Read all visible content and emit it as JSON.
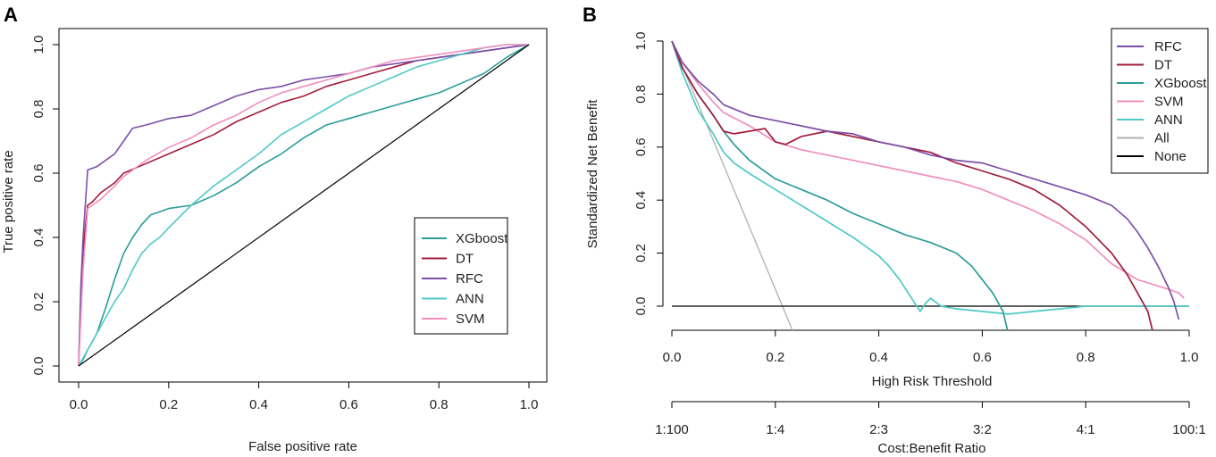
{
  "chart_data": [
    {
      "type": "line",
      "panel_label": "A",
      "title": "",
      "xlabel": "False positive rate",
      "ylabel": "True positive rate",
      "xlim": [
        0,
        1
      ],
      "ylim": [
        0,
        1
      ],
      "x_ticks": [
        "0.0",
        "0.2",
        "0.4",
        "0.6",
        "0.8",
        "1.0"
      ],
      "y_ticks": [
        "0.0",
        "0.2",
        "0.4",
        "0.6",
        "0.8",
        "1.0"
      ],
      "legend_position": "bottom-right",
      "legend": [
        "XGboost",
        "DT",
        "RFC",
        "ANN",
        "SVM"
      ],
      "series": [
        {
          "name": "XGboost",
          "color": "#2a9d98",
          "x": [
            0,
            0.01,
            0.02,
            0.04,
            0.06,
            0.08,
            0.1,
            0.12,
            0.14,
            0.16,
            0.18,
            0.2,
            0.25,
            0.3,
            0.35,
            0.4,
            0.45,
            0.5,
            0.55,
            0.6,
            0.65,
            0.7,
            0.75,
            0.8,
            0.85,
            0.9,
            0.95,
            1.0
          ],
          "y": [
            0,
            0.02,
            0.05,
            0.1,
            0.18,
            0.27,
            0.35,
            0.4,
            0.44,
            0.47,
            0.48,
            0.49,
            0.5,
            0.53,
            0.57,
            0.62,
            0.66,
            0.71,
            0.75,
            0.77,
            0.79,
            0.81,
            0.83,
            0.85,
            0.88,
            0.91,
            0.96,
            1.0
          ]
        },
        {
          "name": "DT",
          "color": "#a01c3a",
          "x": [
            0,
            0.005,
            0.01,
            0.02,
            0.03,
            0.05,
            0.08,
            0.1,
            0.15,
            0.2,
            0.25,
            0.3,
            0.35,
            0.4,
            0.45,
            0.5,
            0.55,
            0.6,
            0.65,
            0.7,
            0.75,
            0.8,
            0.85,
            0.9,
            0.95,
            1.0
          ],
          "y": [
            0,
            0.2,
            0.36,
            0.5,
            0.51,
            0.54,
            0.57,
            0.6,
            0.63,
            0.66,
            0.69,
            0.72,
            0.76,
            0.79,
            0.82,
            0.84,
            0.87,
            0.89,
            0.91,
            0.93,
            0.95,
            0.96,
            0.97,
            0.98,
            0.99,
            1.0
          ],
          "y_note": "step curve"
        },
        {
          "name": "RFC",
          "color": "#7b4fa8",
          "x": [
            0,
            0.005,
            0.01,
            0.02,
            0.04,
            0.06,
            0.08,
            0.1,
            0.12,
            0.15,
            0.2,
            0.25,
            0.3,
            0.35,
            0.4,
            0.45,
            0.5,
            0.55,
            0.6,
            0.65,
            0.7,
            0.75,
            0.8,
            0.85,
            0.9,
            0.95,
            1.0
          ],
          "y": [
            0,
            0.25,
            0.4,
            0.61,
            0.62,
            0.64,
            0.66,
            0.7,
            0.74,
            0.75,
            0.77,
            0.78,
            0.81,
            0.84,
            0.86,
            0.87,
            0.89,
            0.9,
            0.91,
            0.93,
            0.94,
            0.95,
            0.96,
            0.97,
            0.98,
            0.99,
            1.0
          ]
        },
        {
          "name": "ANN",
          "color": "#4fc9c6",
          "x": [
            0,
            0.02,
            0.04,
            0.06,
            0.08,
            0.1,
            0.12,
            0.14,
            0.16,
            0.18,
            0.2,
            0.25,
            0.3,
            0.35,
            0.4,
            0.45,
            0.5,
            0.55,
            0.6,
            0.65,
            0.7,
            0.75,
            0.8,
            0.85,
            0.9,
            0.95,
            1.0
          ],
          "y": [
            0,
            0.05,
            0.1,
            0.15,
            0.2,
            0.24,
            0.3,
            0.35,
            0.38,
            0.4,
            0.43,
            0.5,
            0.56,
            0.61,
            0.66,
            0.72,
            0.76,
            0.8,
            0.84,
            0.87,
            0.9,
            0.93,
            0.95,
            0.97,
            0.99,
            1.0,
            1.0
          ]
        },
        {
          "name": "SVM",
          "color": "#f08ebd",
          "x": [
            0,
            0.005,
            0.01,
            0.02,
            0.03,
            0.05,
            0.08,
            0.1,
            0.15,
            0.2,
            0.25,
            0.3,
            0.35,
            0.4,
            0.45,
            0.5,
            0.55,
            0.6,
            0.65,
            0.7,
            0.75,
            0.8,
            0.85,
            0.9,
            0.95,
            1.0
          ],
          "y": [
            0,
            0.15,
            0.3,
            0.49,
            0.5,
            0.52,
            0.56,
            0.59,
            0.64,
            0.68,
            0.71,
            0.75,
            0.78,
            0.82,
            0.85,
            0.87,
            0.89,
            0.91,
            0.93,
            0.95,
            0.96,
            0.97,
            0.98,
            0.99,
            1.0,
            1.0
          ]
        },
        {
          "name": "Reference",
          "color": "#000000",
          "x": [
            0,
            1
          ],
          "y": [
            0,
            1
          ]
        }
      ]
    },
    {
      "type": "line",
      "panel_label": "B",
      "title": "",
      "xlabel": "High Risk Threshold",
      "ylabel": "Standardized Net Benefit",
      "xlabel2": "Cost:Benefit Ratio",
      "xlim": [
        0,
        1
      ],
      "ylim": [
        -0.1,
        1.0
      ],
      "x_ticks": [
        "0.0",
        "0.2",
        "0.4",
        "0.6",
        "0.8",
        "1.0"
      ],
      "y_ticks": [
        "0.0",
        "0.2",
        "0.4",
        "0.6",
        "0.8",
        "1.0"
      ],
      "ratio_ticks": [
        "1:100",
        "1:4",
        "2:3",
        "3:2",
        "4:1",
        "100:1"
      ],
      "legend_position": "top-right",
      "legend": [
        "RFC",
        "DT",
        "XGboost",
        "SVM",
        "ANN",
        "All",
        "None"
      ],
      "series": [
        {
          "name": "RFC",
          "color": "#7b4fa8",
          "x": [
            0,
            0.02,
            0.05,
            0.08,
            0.1,
            0.15,
            0.2,
            0.25,
            0.3,
            0.35,
            0.4,
            0.45,
            0.5,
            0.55,
            0.6,
            0.65,
            0.7,
            0.75,
            0.8,
            0.85,
            0.88,
            0.9,
            0.92,
            0.94,
            0.96,
            0.97,
            0.98
          ],
          "y": [
            1.0,
            0.92,
            0.85,
            0.8,
            0.76,
            0.72,
            0.7,
            0.68,
            0.66,
            0.65,
            0.62,
            0.6,
            0.57,
            0.55,
            0.54,
            0.51,
            0.48,
            0.45,
            0.42,
            0.38,
            0.33,
            0.28,
            0.22,
            0.15,
            0.07,
            0.02,
            -0.05
          ]
        },
        {
          "name": "DT",
          "color": "#a01c3a",
          "x": [
            0,
            0.02,
            0.05,
            0.08,
            0.1,
            0.12,
            0.15,
            0.18,
            0.2,
            0.22,
            0.25,
            0.3,
            0.35,
            0.4,
            0.45,
            0.5,
            0.55,
            0.6,
            0.65,
            0.7,
            0.75,
            0.8,
            0.85,
            0.88,
            0.9,
            0.92,
            0.93
          ],
          "y": [
            1.0,
            0.9,
            0.8,
            0.72,
            0.66,
            0.65,
            0.66,
            0.67,
            0.62,
            0.61,
            0.64,
            0.66,
            0.64,
            0.62,
            0.6,
            0.58,
            0.54,
            0.51,
            0.48,
            0.44,
            0.38,
            0.3,
            0.2,
            0.12,
            0.05,
            -0.02,
            -0.1
          ]
        },
        {
          "name": "XGboost",
          "color": "#2a9d98",
          "x": [
            0,
            0.02,
            0.05,
            0.08,
            0.1,
            0.12,
            0.15,
            0.2,
            0.25,
            0.3,
            0.35,
            0.4,
            0.45,
            0.5,
            0.55,
            0.58,
            0.6,
            0.62,
            0.64,
            0.65
          ],
          "y": [
            1.0,
            0.9,
            0.8,
            0.72,
            0.66,
            0.61,
            0.55,
            0.48,
            0.44,
            0.4,
            0.35,
            0.31,
            0.27,
            0.24,
            0.2,
            0.15,
            0.1,
            0.05,
            -0.02,
            -0.1
          ]
        },
        {
          "name": "SVM",
          "color": "#f08ebd",
          "x": [
            0,
            0.02,
            0.05,
            0.08,
            0.1,
            0.15,
            0.2,
            0.25,
            0.3,
            0.35,
            0.4,
            0.45,
            0.5,
            0.55,
            0.6,
            0.65,
            0.7,
            0.75,
            0.8,
            0.85,
            0.9,
            0.95,
            0.98,
            0.99
          ],
          "y": [
            1.0,
            0.92,
            0.84,
            0.77,
            0.73,
            0.68,
            0.62,
            0.59,
            0.57,
            0.55,
            0.53,
            0.51,
            0.49,
            0.47,
            0.44,
            0.4,
            0.36,
            0.31,
            0.25,
            0.16,
            0.1,
            0.07,
            0.05,
            0.03
          ]
        },
        {
          "name": "ANN",
          "color": "#4fc9c6",
          "x": [
            0,
            0.02,
            0.05,
            0.08,
            0.1,
            0.12,
            0.15,
            0.2,
            0.25,
            0.3,
            0.35,
            0.4,
            0.42,
            0.44,
            0.46,
            0.47,
            0.48,
            0.49,
            0.5,
            0.52,
            0.55,
            0.6,
            0.65,
            0.7,
            0.75,
            0.8,
            0.85,
            0.9,
            1.0
          ],
          "y": [
            1.0,
            0.88,
            0.74,
            0.65,
            0.58,
            0.54,
            0.5,
            0.44,
            0.38,
            0.32,
            0.26,
            0.19,
            0.15,
            0.1,
            0.04,
            0.01,
            -0.02,
            0.01,
            0.03,
            0.0,
            -0.01,
            -0.02,
            -0.03,
            -0.02,
            -0.01,
            0.0,
            0.0,
            0.0,
            0.0
          ]
        },
        {
          "name": "All",
          "color": "#b0b0b0",
          "x": [
            0,
            0.235
          ],
          "y": [
            1.0,
            -0.1
          ]
        },
        {
          "name": "None",
          "color": "#000000",
          "x": [
            0,
            1
          ],
          "y": [
            0,
            0
          ]
        }
      ]
    }
  ]
}
